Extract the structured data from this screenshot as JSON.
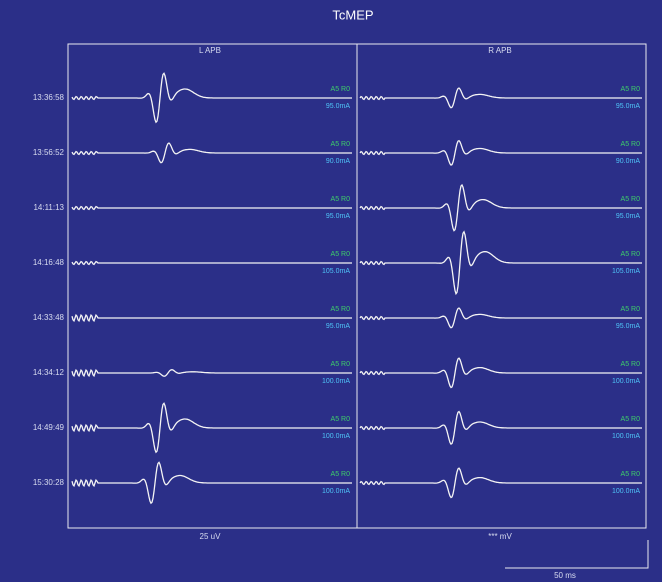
{
  "title": "TcMEP",
  "columns": [
    {
      "label": "L APB",
      "scale": "25 uV"
    },
    {
      "label": "R APB",
      "scale": "*** mV"
    }
  ],
  "time_scale": "50 ms",
  "rows": [
    {
      "time": "13:36:58",
      "left": {
        "site": "A5 R0",
        "intensity": "95.0mA"
      },
      "right": {
        "site": "A5 R0",
        "intensity": "95.0mA"
      }
    },
    {
      "time": "13:56:52",
      "left": {
        "site": "A5 R0",
        "intensity": "90.0mA"
      },
      "right": {
        "site": "A5 R0",
        "intensity": "90.0mA"
      }
    },
    {
      "time": "14:11:13",
      "left": {
        "site": "A5 R0",
        "intensity": "95.0mA"
      },
      "right": {
        "site": "A5 R0",
        "intensity": "95.0mA"
      }
    },
    {
      "time": "14:16:48",
      "left": {
        "site": "A5 R0",
        "intensity": "105.0mA"
      },
      "right": {
        "site": "A5 R0",
        "intensity": "105.0mA"
      }
    },
    {
      "time": "14:33:48",
      "left": {
        "site": "A5 R0",
        "intensity": "95.0mA"
      },
      "right": {
        "site": "A5 R0",
        "intensity": "95.0mA"
      }
    },
    {
      "time": "14:34:12",
      "left": {
        "site": "A5 R0",
        "intensity": "100.0mA"
      },
      "right": {
        "site": "A5 R0",
        "intensity": "100.0mA"
      }
    },
    {
      "time": "14:49:49",
      "left": {
        "site": "A5 R0",
        "intensity": "100.0mA"
      },
      "right": {
        "site": "A5 R0",
        "intensity": "100.0mA"
      }
    },
    {
      "time": "15:30:28",
      "left": {
        "site": "A5 R0",
        "intensity": "100.0mA"
      },
      "right": {
        "site": "A5 R0",
        "intensity": "100.0mA"
      }
    }
  ]
}
